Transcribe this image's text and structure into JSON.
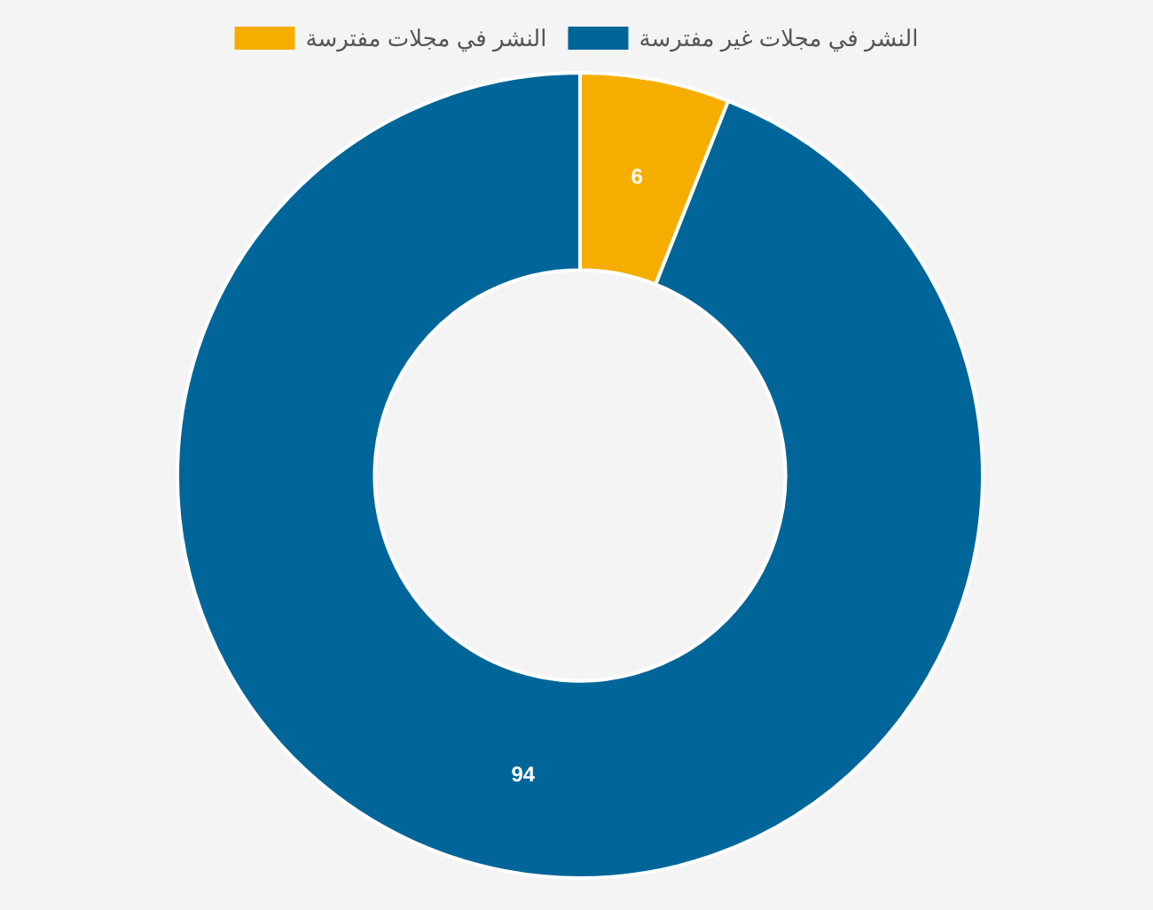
{
  "chart_data": {
    "type": "donut",
    "categories": [
      "النشر في مجلات مفترسة",
      "النشر في مجلات غير مفترسة"
    ],
    "values": [
      6,
      94
    ],
    "colors": [
      "#f5ae00",
      "#006699"
    ],
    "data_labels": true,
    "legend": "top"
  }
}
